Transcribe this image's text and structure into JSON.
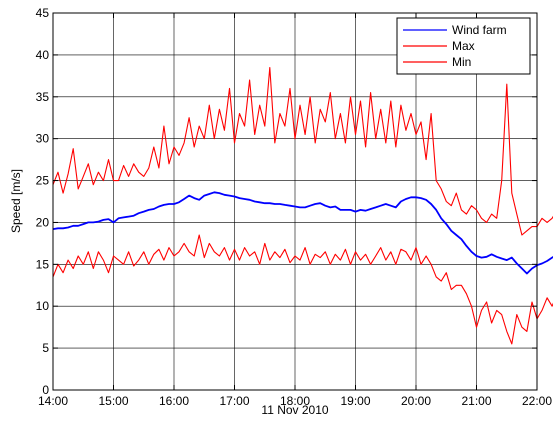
{
  "chart_data": {
    "type": "line",
    "title": "",
    "xlabel": "11 Nov 2010",
    "ylabel": "Speed [m/s]",
    "xlim": [
      "14:00",
      "22:00"
    ],
    "ylim": [
      0,
      45
    ],
    "x_ticks": [
      "14:00",
      "15:00",
      "16:00",
      "17:00",
      "18:00",
      "19:00",
      "20:00",
      "21:00",
      "22:00"
    ],
    "y_ticks": [
      "0",
      "5",
      "10",
      "15",
      "20",
      "25",
      "30",
      "35",
      "40",
      "45"
    ],
    "grid": true,
    "legend_placement": "top-right",
    "time_step": "00:05",
    "series": [
      {
        "name": "Wind farm",
        "color": "#0000ff",
        "values": [
          19.2,
          19.3,
          19.3,
          19.4,
          19.6,
          19.6,
          19.8,
          20.0,
          20.0,
          20.1,
          20.3,
          20.4,
          20.0,
          20.5,
          20.6,
          20.7,
          20.8,
          21.1,
          21.3,
          21.5,
          21.6,
          21.9,
          22.1,
          22.2,
          22.2,
          22.4,
          22.8,
          23.2,
          22.9,
          22.7,
          23.2,
          23.4,
          23.6,
          23.5,
          23.3,
          23.2,
          23.1,
          22.9,
          22.8,
          22.7,
          22.5,
          22.4,
          22.3,
          22.3,
          22.2,
          22.2,
          22.1,
          22.0,
          21.9,
          21.8,
          21.8,
          22.0,
          22.2,
          22.3,
          22.0,
          21.8,
          21.9,
          21.5,
          21.5,
          21.5,
          21.3,
          21.5,
          21.4,
          21.6,
          21.8,
          22.0,
          22.2,
          22.0,
          21.8,
          22.5,
          22.8,
          23.0,
          23.0,
          22.9,
          22.7,
          22.2,
          21.5,
          20.5,
          19.8,
          19.0,
          18.5,
          18.0,
          17.2,
          16.5,
          16.0,
          15.8,
          15.9,
          16.2,
          15.9,
          15.7,
          15.5,
          15.8,
          15.1,
          14.5,
          13.9,
          14.5,
          14.9,
          15.1,
          15.4,
          15.8,
          16.2,
          16.6,
          17.0
        ]
      },
      {
        "name": "Max",
        "color": "#ff0000",
        "values": [
          24.5,
          26.0,
          23.5,
          25.8,
          28.8,
          24.0,
          25.5,
          27.0,
          24.5,
          26.0,
          25.0,
          27.5,
          25.0,
          25.0,
          26.8,
          25.5,
          27.0,
          26.0,
          25.5,
          26.5,
          29.0,
          26.5,
          31.5,
          27.0,
          29.0,
          28.0,
          29.5,
          32.5,
          29.0,
          31.5,
          30.0,
          34.0,
          30.0,
          33.5,
          31.0,
          36.0,
          29.5,
          33.0,
          31.5,
          37.0,
          30.5,
          34.0,
          31.5,
          38.5,
          29.5,
          33.0,
          31.5,
          36.0,
          30.0,
          34.0,
          30.5,
          35.0,
          29.5,
          33.5,
          32.0,
          35.5,
          30.0,
          33.0,
          29.5,
          35.0,
          30.5,
          34.5,
          29.0,
          35.5,
          30.0,
          33.5,
          29.5,
          34.5,
          29.0,
          34.0,
          31.0,
          33.0,
          30.5,
          32.0,
          27.5,
          33.0,
          25.0,
          24.0,
          22.5,
          22.0,
          23.5,
          21.5,
          21.0,
          22.0,
          21.5,
          20.5,
          20.0,
          21.0,
          20.5,
          25.0,
          36.5,
          23.5,
          21.0,
          18.5,
          19.0,
          19.5,
          19.5,
          20.5,
          20.0,
          20.5,
          21.5,
          21.0,
          21.5
        ]
      },
      {
        "name": "Min",
        "color": "#ff0000",
        "values": [
          13.5,
          15.0,
          14.0,
          15.5,
          14.5,
          16.0,
          15.0,
          16.5,
          14.5,
          16.5,
          15.5,
          14.0,
          16.0,
          15.5,
          15.0,
          16.5,
          14.8,
          15.5,
          16.5,
          15.0,
          16.2,
          16.8,
          15.5,
          17.0,
          16.0,
          16.5,
          17.5,
          16.5,
          16.0,
          18.5,
          15.8,
          17.5,
          16.5,
          16.0,
          17.0,
          15.5,
          16.8,
          15.5,
          17.0,
          16.0,
          16.5,
          15.0,
          17.5,
          15.5,
          16.5,
          15.8,
          16.8,
          15.2,
          16.0,
          15.5,
          17.0,
          15.0,
          16.2,
          15.8,
          16.5,
          15.0,
          16.2,
          15.5,
          16.8,
          15.0,
          16.5,
          15.5,
          16.2,
          15.0,
          16.0,
          17.0,
          15.5,
          16.5,
          15.0,
          16.8,
          16.5,
          15.5,
          17.0,
          15.0,
          16.0,
          15.0,
          13.5,
          13.0,
          14.0,
          12.0,
          12.5,
          12.5,
          11.5,
          10.0,
          7.5,
          9.5,
          10.5,
          8.0,
          9.5,
          9.0,
          7.0,
          5.5,
          9.0,
          7.5,
          7.0,
          10.5,
          8.5,
          9.5,
          11.0,
          10.0,
          11.5,
          12.0,
          13.0
        ]
      }
    ]
  }
}
